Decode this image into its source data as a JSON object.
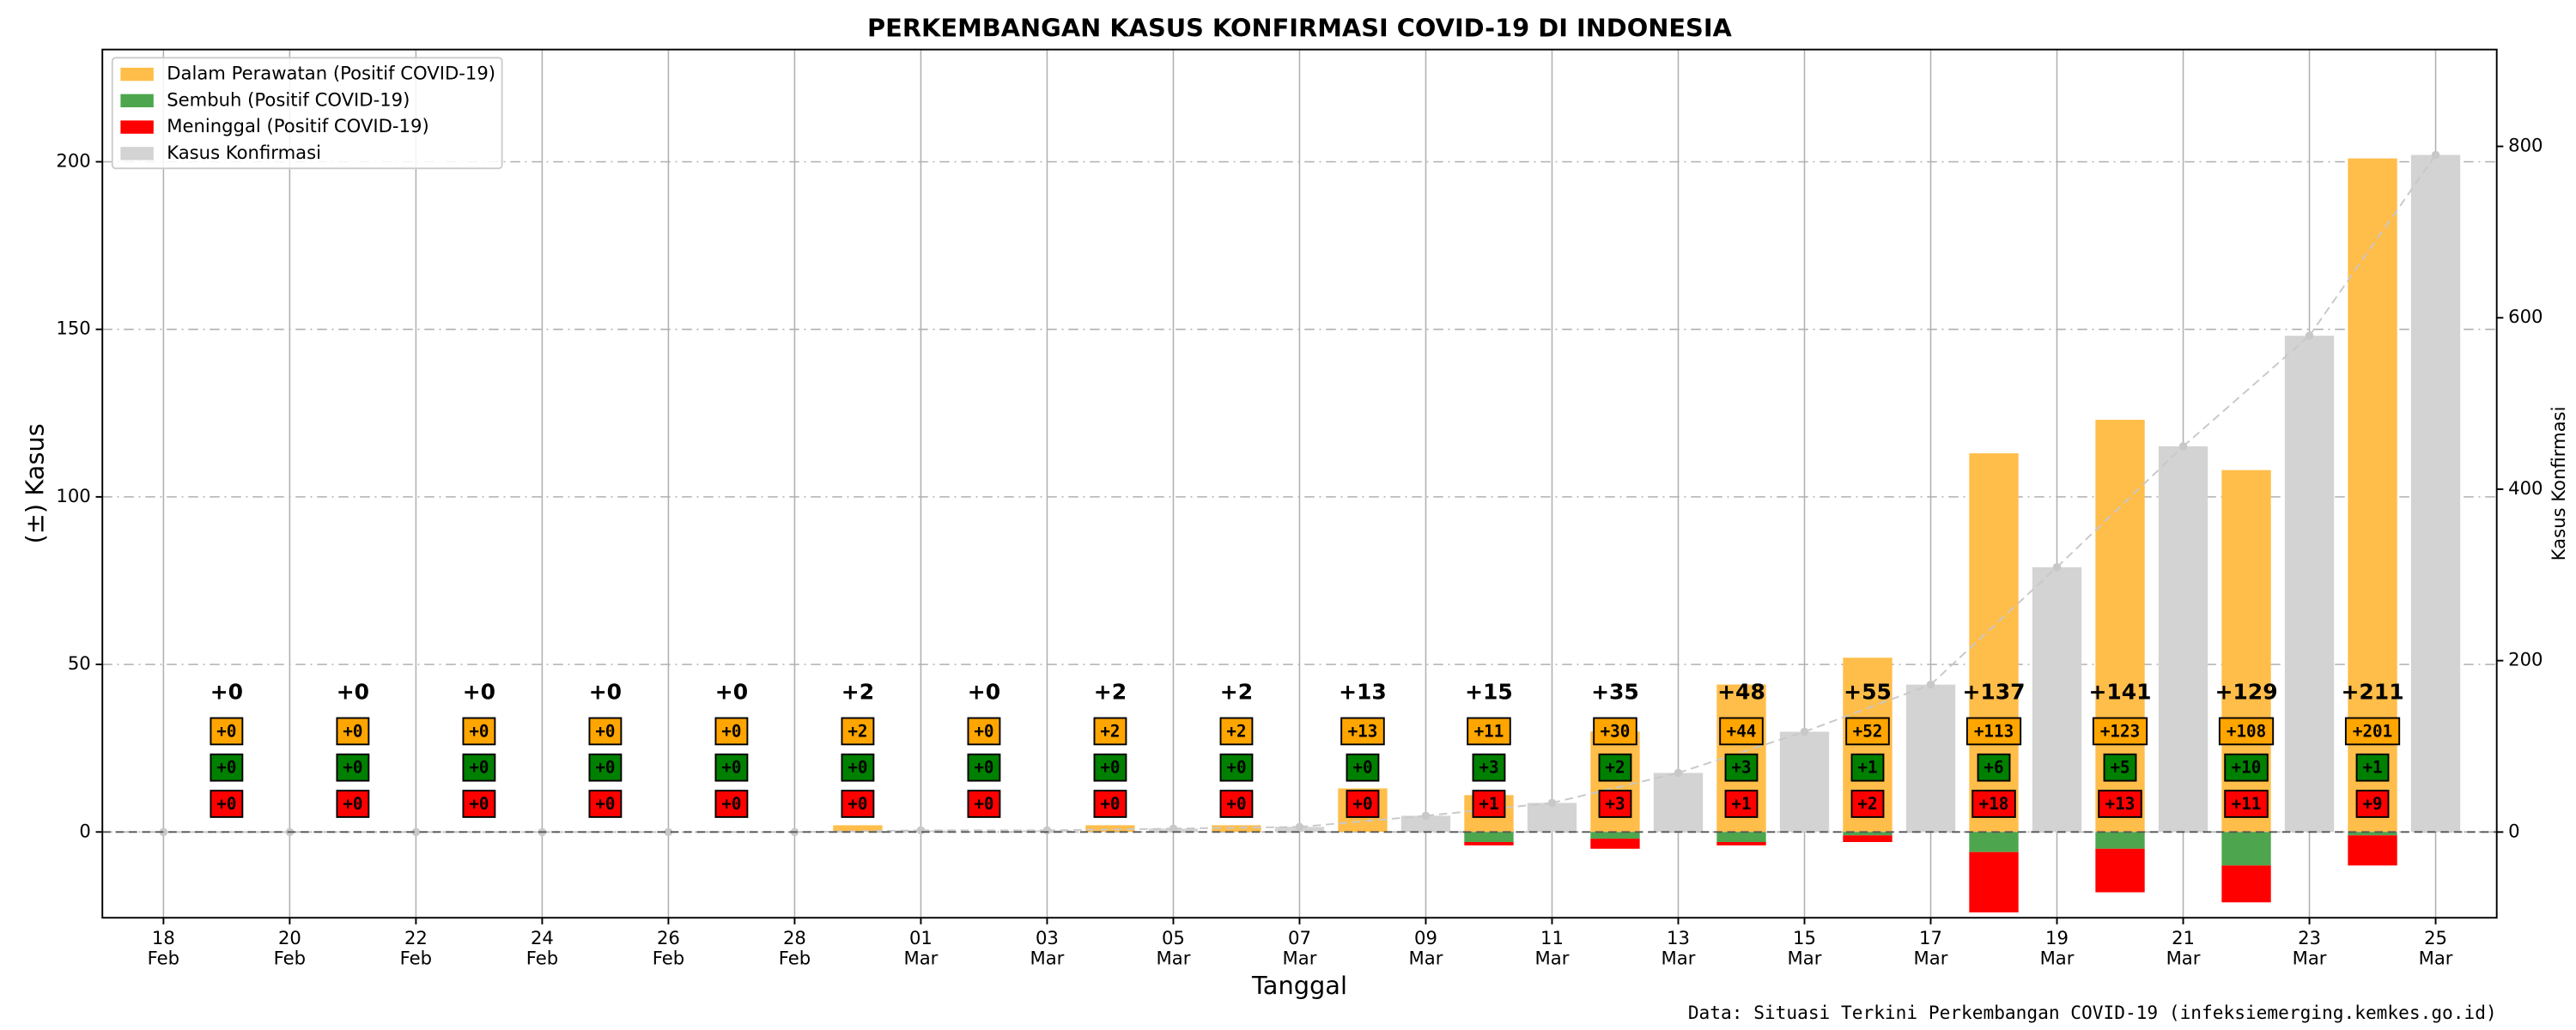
{
  "chart_data": {
    "type": "bar",
    "title": "PERKEMBANGAN KASUS KONFIRMASI COVID-19 DI INDONESIA",
    "xlabel": "Tanggal",
    "ylabel": "(±) Kasus",
    "y2label": "Kasus Konfirmasi",
    "source": "Data: Situasi Terkini Perkembangan COVID-19 (infeksiemerging.kemkes.go.id)",
    "categories": [
      "18 Feb",
      null,
      "20 Feb",
      null,
      "22 Feb",
      null,
      "24 Feb",
      null,
      "26 Feb",
      null,
      "28 Feb",
      null,
      "01 Mar",
      null,
      "03 Mar",
      null,
      "05 Mar",
      null,
      "07 Mar",
      null,
      "09 Mar",
      null,
      "11 Mar",
      null,
      "13 Mar",
      null,
      "15 Mar",
      null,
      "17 Mar",
      null,
      "19 Mar",
      null,
      "21 Mar",
      null,
      "23 Mar",
      null,
      "25 Mar"
    ],
    "ylim": [
      -25.6,
      233.5
    ],
    "yticks": [
      0,
      50,
      100,
      150,
      200
    ],
    "y2lim": [
      -100,
      913
    ],
    "y2ticks": [
      0,
      200,
      400,
      600,
      800
    ],
    "grid": true,
    "legend": "upper left",
    "series": [
      {
        "name": "Dalam Perawatan (Positif COVID-19)",
        "color": "#ffbd4a",
        "box_color": "#ffa500",
        "box_text": "#000000",
        "values": [
          null,
          0,
          null,
          0,
          null,
          0,
          null,
          0,
          null,
          0,
          null,
          2,
          null,
          0,
          null,
          2,
          null,
          2,
          null,
          13,
          null,
          11,
          null,
          30,
          null,
          44,
          null,
          52,
          null,
          113,
          null,
          123,
          null,
          108,
          null,
          201,
          null
        ],
        "value_labels": [
          null,
          "+0",
          null,
          "+0",
          null,
          "+0",
          null,
          "+0",
          null,
          "+0",
          null,
          "+2",
          null,
          "+0",
          null,
          "+2",
          null,
          "+2",
          null,
          "+13",
          null,
          "+11",
          null,
          "+30",
          null,
          "+44",
          null,
          "+52",
          null,
          "+113",
          null,
          "+123",
          null,
          "+108",
          null,
          "+201",
          null
        ]
      },
      {
        "name": "Sembuh (Positif COVID-19)",
        "color": "#4da64d",
        "box_color": "#008000",
        "box_text": "#ffffff",
        "values": [
          null,
          0,
          null,
          0,
          null,
          0,
          null,
          0,
          null,
          0,
          null,
          0,
          null,
          0,
          null,
          0,
          null,
          0,
          null,
          0,
          null,
          3,
          null,
          2,
          null,
          3,
          null,
          1,
          null,
          6,
          null,
          5,
          null,
          10,
          null,
          1,
          null
        ],
        "value_labels": [
          null,
          "+0",
          null,
          "+0",
          null,
          "+0",
          null,
          "+0",
          null,
          "+0",
          null,
          "+0",
          null,
          "+0",
          null,
          "+0",
          null,
          "+0",
          null,
          "+0",
          null,
          "+3",
          null,
          "+2",
          null,
          "+3",
          null,
          "+1",
          null,
          "+6",
          null,
          "+5",
          null,
          "+10",
          null,
          "+1",
          null
        ]
      },
      {
        "name": "Meninggal (Positif COVID-19)",
        "color": "#ff0000",
        "box_color": "#ff0000",
        "box_text": "#ffffff",
        "values": [
          null,
          0,
          null,
          0,
          null,
          0,
          null,
          0,
          null,
          0,
          null,
          0,
          null,
          0,
          null,
          0,
          null,
          0,
          null,
          0,
          null,
          1,
          null,
          3,
          null,
          1,
          null,
          2,
          null,
          18,
          null,
          13,
          null,
          11,
          null,
          9,
          null
        ],
        "value_labels": [
          null,
          "+0",
          null,
          "+0",
          null,
          "+0",
          null,
          "+0",
          null,
          "+0",
          null,
          "+0",
          null,
          "+0",
          null,
          "+0",
          null,
          "+0",
          null,
          "+0",
          null,
          "+1",
          null,
          "+3",
          null,
          "+1",
          null,
          "+2",
          null,
          "+18",
          null,
          "+13",
          null,
          "+11",
          null,
          "+9",
          null
        ]
      },
      {
        "name": "Kasus Konfirmasi",
        "color": "#d3d3d3",
        "axis": "y2",
        "values": [
          0,
          null,
          0,
          null,
          0,
          null,
          0,
          null,
          0,
          null,
          0,
          null,
          2,
          null,
          2,
          null,
          4,
          null,
          6,
          null,
          19,
          null,
          34,
          null,
          69,
          null,
          117,
          null,
          172,
          null,
          309,
          null,
          450,
          null,
          579,
          null,
          790
        ]
      }
    ],
    "daily_total": {
      "values": [
        null,
        0,
        null,
        0,
        null,
        0,
        null,
        0,
        null,
        0,
        null,
        2,
        null,
        0,
        null,
        2,
        null,
        2,
        null,
        13,
        null,
        15,
        null,
        35,
        null,
        48,
        null,
        55,
        null,
        137,
        null,
        141,
        null,
        129,
        null,
        211,
        null
      ],
      "value_labels": [
        null,
        "+0",
        null,
        "+0",
        null,
        "+0",
        null,
        "+0",
        null,
        "+0",
        null,
        "+2",
        null,
        "+0",
        null,
        "+2",
        null,
        "+2",
        null,
        "+13",
        null,
        "+15",
        null,
        "+35",
        null,
        "+48",
        null,
        "+55",
        null,
        "+137",
        null,
        "+141",
        null,
        "+129",
        null,
        "+211",
        null
      ]
    }
  }
}
